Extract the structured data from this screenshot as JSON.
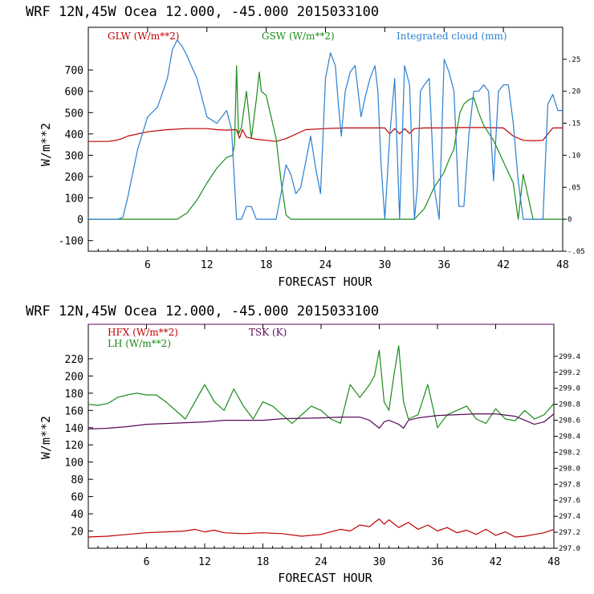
{
  "chart_data": [
    {
      "type": "line",
      "title": "WRF   12N,45W Ocea  12.000, -45.000  2015033100",
      "xlabel": "FORECAST HOUR",
      "ylabel": "W/m**2",
      "xlim": [
        0,
        48
      ],
      "ylim": [
        -150,
        900
      ],
      "y2lim": [
        -0.05,
        0.3
      ],
      "xticks": [
        6,
        12,
        18,
        24,
        30,
        36,
        42,
        48
      ],
      "yticks": [
        -100,
        0,
        100,
        200,
        300,
        400,
        500,
        600,
        700
      ],
      "y2ticks": [
        {
          "value": -0.05,
          "label": "-.05"
        },
        {
          "value": 0,
          "label": "0"
        },
        {
          "value": 0.05,
          "label": ".05"
        },
        {
          "value": 0.1,
          "label": ".10"
        },
        {
          "value": 0.15,
          "label": ".15"
        },
        {
          "value": 0.2,
          "label": ".20"
        },
        {
          "value": 0.25,
          "label": ".25"
        }
      ],
      "series": [
        {
          "name": "GLW (W/m**2)",
          "color": "#c00000",
          "axis": "left",
          "x": [
            0,
            2,
            2.5,
            3,
            3.5,
            4,
            6,
            8,
            10,
            12,
            13,
            14,
            15,
            15.3,
            15.6,
            16,
            17,
            18,
            19,
            20,
            22,
            24,
            26,
            28,
            30,
            30.5,
            31,
            31.5,
            32,
            32.5,
            33,
            34,
            36,
            38,
            40,
            42,
            43,
            44,
            45,
            46,
            46.5,
            47,
            48
          ],
          "y": [
            365,
            365,
            368,
            372,
            380,
            390,
            410,
            420,
            425,
            425,
            420,
            418,
            420,
            380,
            420,
            385,
            375,
            370,
            365,
            378,
            420,
            425,
            428,
            428,
            428,
            400,
            425,
            400,
            425,
            402,
            425,
            428,
            428,
            430,
            430,
            428,
            390,
            370,
            368,
            370,
            400,
            428,
            428
          ]
        },
        {
          "name": "GSW (W/m**2)",
          "color": "#1a8c1a",
          "axis": "left",
          "x": [
            0,
            9,
            10,
            11,
            12,
            13,
            14,
            14.6,
            14.8,
            15,
            15.2,
            15.5,
            16,
            16.5,
            17,
            17.3,
            17.5,
            18,
            19,
            19.5,
            20,
            20.5,
            30,
            31,
            32,
            33,
            34,
            35,
            36,
            36.5,
            37,
            37.3,
            37.6,
            38,
            38.5,
            39,
            39.5,
            40,
            41,
            42,
            43,
            43.5,
            44,
            45,
            48
          ],
          "y": [
            0,
            0,
            30,
            90,
            170,
            240,
            290,
            300,
            350,
            720,
            400,
            430,
            600,
            380,
            560,
            690,
            600,
            580,
            380,
            180,
            20,
            0,
            0,
            0,
            0,
            0,
            50,
            150,
            220,
            280,
            330,
            420,
            500,
            540,
            560,
            570,
            500,
            440,
            370,
            270,
            170,
            0,
            210,
            0,
            0
          ]
        },
        {
          "name": "Integrated cloud (mm)",
          "color": "#2a7fd0",
          "axis": "right",
          "x": [
            0,
            3,
            3.5,
            4,
            5,
            6,
            7,
            8,
            8.5,
            9,
            9.5,
            10,
            11,
            12,
            13,
            14,
            14.5,
            15,
            15.5,
            16,
            16.5,
            17,
            18,
            19,
            19.5,
            20,
            20.5,
            21,
            21.5,
            22,
            22.5,
            23,
            23.5,
            24,
            24.5,
            25,
            25.3,
            25.6,
            26,
            26.5,
            27,
            27.3,
            27.6,
            28,
            28.5,
            29,
            29.3,
            29.6,
            30,
            30.5,
            31,
            31.5,
            32,
            32.5,
            33,
            33.3,
            33.6,
            34,
            34.5,
            35,
            35.5,
            36,
            36.5,
            37,
            37.5,
            38,
            38.5,
            39,
            39.5,
            40,
            40.5,
            41,
            41.5,
            42,
            42.5,
            43,
            43.5,
            44,
            44.5,
            45,
            46,
            46.5,
            47,
            47.5,
            48
          ],
          "y": [
            0,
            0,
            0.003,
            0.035,
            0.11,
            0.16,
            0.175,
            0.22,
            0.265,
            0.28,
            0.27,
            0.255,
            0.22,
            0.16,
            0.15,
            0.17,
            0.14,
            0.0,
            0.0,
            0.02,
            0.02,
            0.0,
            0.0,
            0.0,
            0.04,
            0.085,
            0.07,
            0.04,
            0.05,
            0.09,
            0.13,
            0.08,
            0.04,
            0.22,
            0.26,
            0.24,
            0.18,
            0.13,
            0.2,
            0.23,
            0.24,
            0.2,
            0.16,
            0.19,
            0.22,
            0.24,
            0.2,
            0.09,
            0.0,
            0.13,
            0.22,
            0.0,
            0.24,
            0.21,
            0.0,
            0.05,
            0.2,
            0.21,
            0.22,
            0.05,
            0.0,
            0.25,
            0.23,
            0.2,
            0.02,
            0.02,
            0.13,
            0.2,
            0.2,
            0.21,
            0.2,
            0.06,
            0.2,
            0.21,
            0.21,
            0.15,
            0.06,
            0.0,
            0.0,
            0.0,
            0.0,
            0.18,
            0.195,
            0.17,
            0.17
          ]
        }
      ]
    },
    {
      "type": "line",
      "title": "WRF   12N,45W Ocea  12.000, -45.000  2015033100",
      "xlabel": "FORECAST HOUR",
      "ylabel": "W/m**2",
      "xlim": [
        0,
        48
      ],
      "ylim": [
        0,
        260
      ],
      "y2lim": [
        297.0,
        299.8
      ],
      "xticks": [
        6,
        12,
        18,
        24,
        30,
        36,
        42,
        48
      ],
      "yticks": [
        20,
        40,
        60,
        80,
        100,
        120,
        140,
        160,
        180,
        200,
        220
      ],
      "y2ticks": [
        {
          "value": 297.0,
          "label": "297.0"
        },
        {
          "value": 297.2,
          "label": "297.2"
        },
        {
          "value": 297.4,
          "label": "297.4"
        },
        {
          "value": 297.6,
          "label": "297.6"
        },
        {
          "value": 297.8,
          "label": "297.8"
        },
        {
          "value": 298.0,
          "label": "298.0"
        },
        {
          "value": 298.2,
          "label": "298.2"
        },
        {
          "value": 298.4,
          "label": "298.4"
        },
        {
          "value": 298.6,
          "label": "298.6"
        },
        {
          "value": 298.8,
          "label": "298.8"
        },
        {
          "value": 299.0,
          "label": "299.0"
        },
        {
          "value": 299.2,
          "label": "299.2"
        },
        {
          "value": 299.4,
          "label": "299.4"
        }
      ],
      "series": [
        {
          "name": "HFX (W/m**2)",
          "color": "#c00000",
          "axis": "left",
          "x": [
            0,
            2,
            4,
            6,
            8,
            10,
            11,
            12,
            13,
            14,
            16,
            18,
            20,
            22,
            24,
            25,
            26,
            27,
            28,
            29,
            29.5,
            30,
            30.5,
            31,
            32,
            33,
            34,
            35,
            36,
            37,
            38,
            39,
            40,
            41,
            42,
            43,
            44,
            45,
            46,
            47,
            48
          ],
          "y": [
            13,
            14,
            16,
            18,
            19,
            20,
            22,
            19,
            21,
            18,
            17,
            18,
            17,
            14,
            16,
            19,
            22,
            20,
            27,
            25,
            30,
            34,
            28,
            33,
            24,
            30,
            22,
            27,
            20,
            24,
            18,
            21,
            16,
            22,
            15,
            19,
            13,
            14,
            16,
            18,
            22
          ]
        },
        {
          "name": "LH  (W/m**2)",
          "color": "#1a8c1a",
          "axis": "left",
          "x": [
            0,
            1,
            2,
            3,
            4,
            5,
            6,
            7,
            8,
            9,
            10,
            11,
            12,
            13,
            14,
            15,
            16,
            17,
            18,
            19,
            20,
            21,
            22,
            23,
            24,
            25,
            26,
            27,
            28,
            29,
            29.5,
            30,
            30.5,
            31,
            31.5,
            32,
            32.5,
            33,
            34,
            35,
            36,
            37,
            38,
            39,
            40,
            41,
            42,
            43,
            44,
            45,
            46,
            47,
            48
          ],
          "y": [
            167,
            166,
            168,
            175,
            178,
            180,
            178,
            178,
            170,
            160,
            150,
            170,
            190,
            170,
            160,
            185,
            165,
            150,
            170,
            165,
            155,
            145,
            155,
            165,
            160,
            150,
            145,
            190,
            175,
            190,
            200,
            230,
            170,
            160,
            200,
            235,
            170,
            150,
            155,
            190,
            140,
            155,
            160,
            165,
            150,
            145,
            162,
            150,
            148,
            160,
            150,
            155,
            168
          ]
        },
        {
          "name": "TSK (K)",
          "color": "#5a0a5a",
          "axis": "right",
          "x": [
            0,
            2,
            4,
            6,
            8,
            10,
            12,
            14,
            16,
            18,
            20,
            24,
            26,
            28,
            29,
            30,
            30.5,
            31,
            32,
            32.5,
            33,
            34,
            36,
            38,
            40,
            42,
            44,
            46,
            47,
            48
          ],
          "y": [
            298.49,
            298.5,
            298.52,
            298.55,
            298.56,
            298.57,
            298.58,
            298.6,
            298.6,
            298.6,
            298.62,
            298.63,
            298.64,
            298.64,
            298.6,
            298.5,
            298.58,
            298.6,
            298.55,
            298.5,
            298.6,
            298.63,
            298.66,
            298.67,
            298.68,
            298.68,
            298.65,
            298.55,
            298.58,
            298.68
          ]
        }
      ]
    }
  ]
}
